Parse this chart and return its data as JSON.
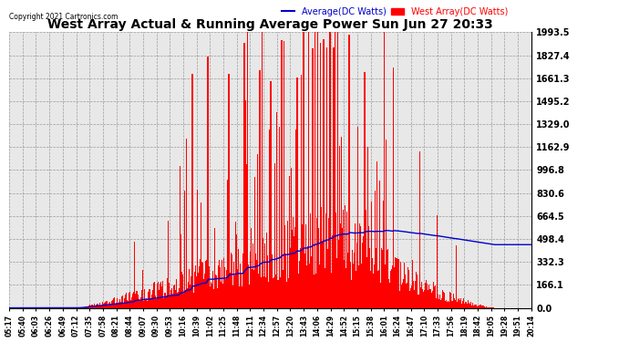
{
  "title": "West Array Actual & Running Average Power Sun Jun 27 20:33",
  "copyright": "Copyright 2021 Cartronics.com",
  "legend_avg": "Average(DC Watts)",
  "legend_west": "West Array(DC Watts)",
  "ylabel_values": [
    0.0,
    166.1,
    332.3,
    498.4,
    664.5,
    830.6,
    996.8,
    1162.9,
    1329.0,
    1495.2,
    1661.3,
    1827.4,
    1993.5
  ],
  "ymax": 1993.5,
  "ymin": 0.0,
  "bar_color": "#ff0000",
  "avg_line_color": "#0000cc",
  "background_color": "#ffffff",
  "plot_bg_color": "#e8e8e8",
  "grid_color": "#888888",
  "title_color": "#000000",
  "copyright_color": "#000000",
  "legend_avg_color": "#0000cc",
  "legend_west_color": "#ff0000",
  "n_points": 570,
  "x_tick_labels": [
    "05:17",
    "05:40",
    "06:03",
    "06:26",
    "06:49",
    "07:12",
    "07:35",
    "07:58",
    "08:21",
    "08:44",
    "09:07",
    "09:30",
    "09:53",
    "10:16",
    "10:39",
    "11:02",
    "11:25",
    "11:48",
    "12:11",
    "12:34",
    "12:57",
    "13:20",
    "13:43",
    "14:06",
    "14:29",
    "14:52",
    "15:15",
    "15:38",
    "16:01",
    "16:24",
    "16:47",
    "17:10",
    "17:33",
    "17:56",
    "18:19",
    "18:42",
    "19:05",
    "19:28",
    "19:51",
    "20:14"
  ]
}
